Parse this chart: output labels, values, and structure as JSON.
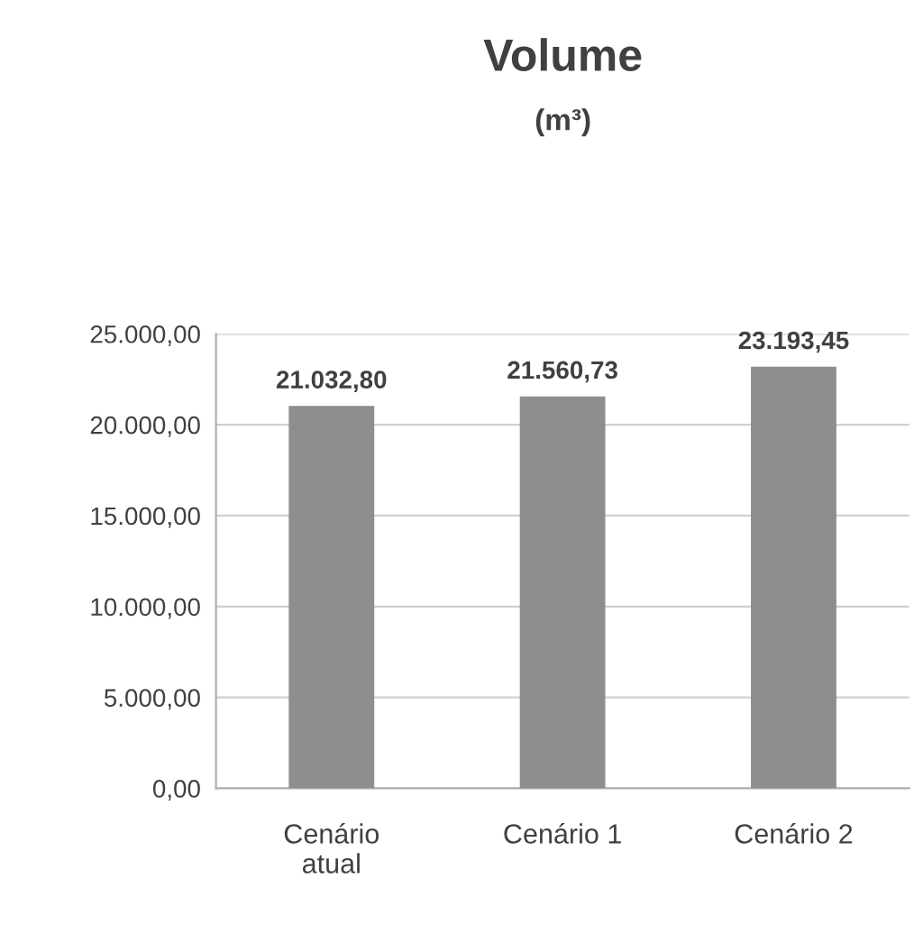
{
  "chart_data": {
    "type": "bar",
    "title": "Volume",
    "subtitle": "(m³)",
    "categories": [
      "Cenário\natual",
      "Cenário 1",
      "Cenário 2"
    ],
    "values": [
      21032.8,
      21560.73,
      23193.45
    ],
    "value_labels": [
      "21.032,80",
      "21.560,73",
      "23.193,45"
    ],
    "color": "#8e8e90",
    "ylim": [
      0,
      25000
    ],
    "yticks": [
      {
        "value": 0,
        "label": "0,00"
      },
      {
        "value": 5000,
        "label": "5.000,00"
      },
      {
        "value": 10000,
        "label": "10.000,00"
      },
      {
        "value": 15000,
        "label": "15.000,00"
      },
      {
        "value": 20000,
        "label": "20.000,00"
      },
      {
        "value": 25000,
        "label": "25.000,00"
      }
    ],
    "grid": "y",
    "legend": false
  }
}
